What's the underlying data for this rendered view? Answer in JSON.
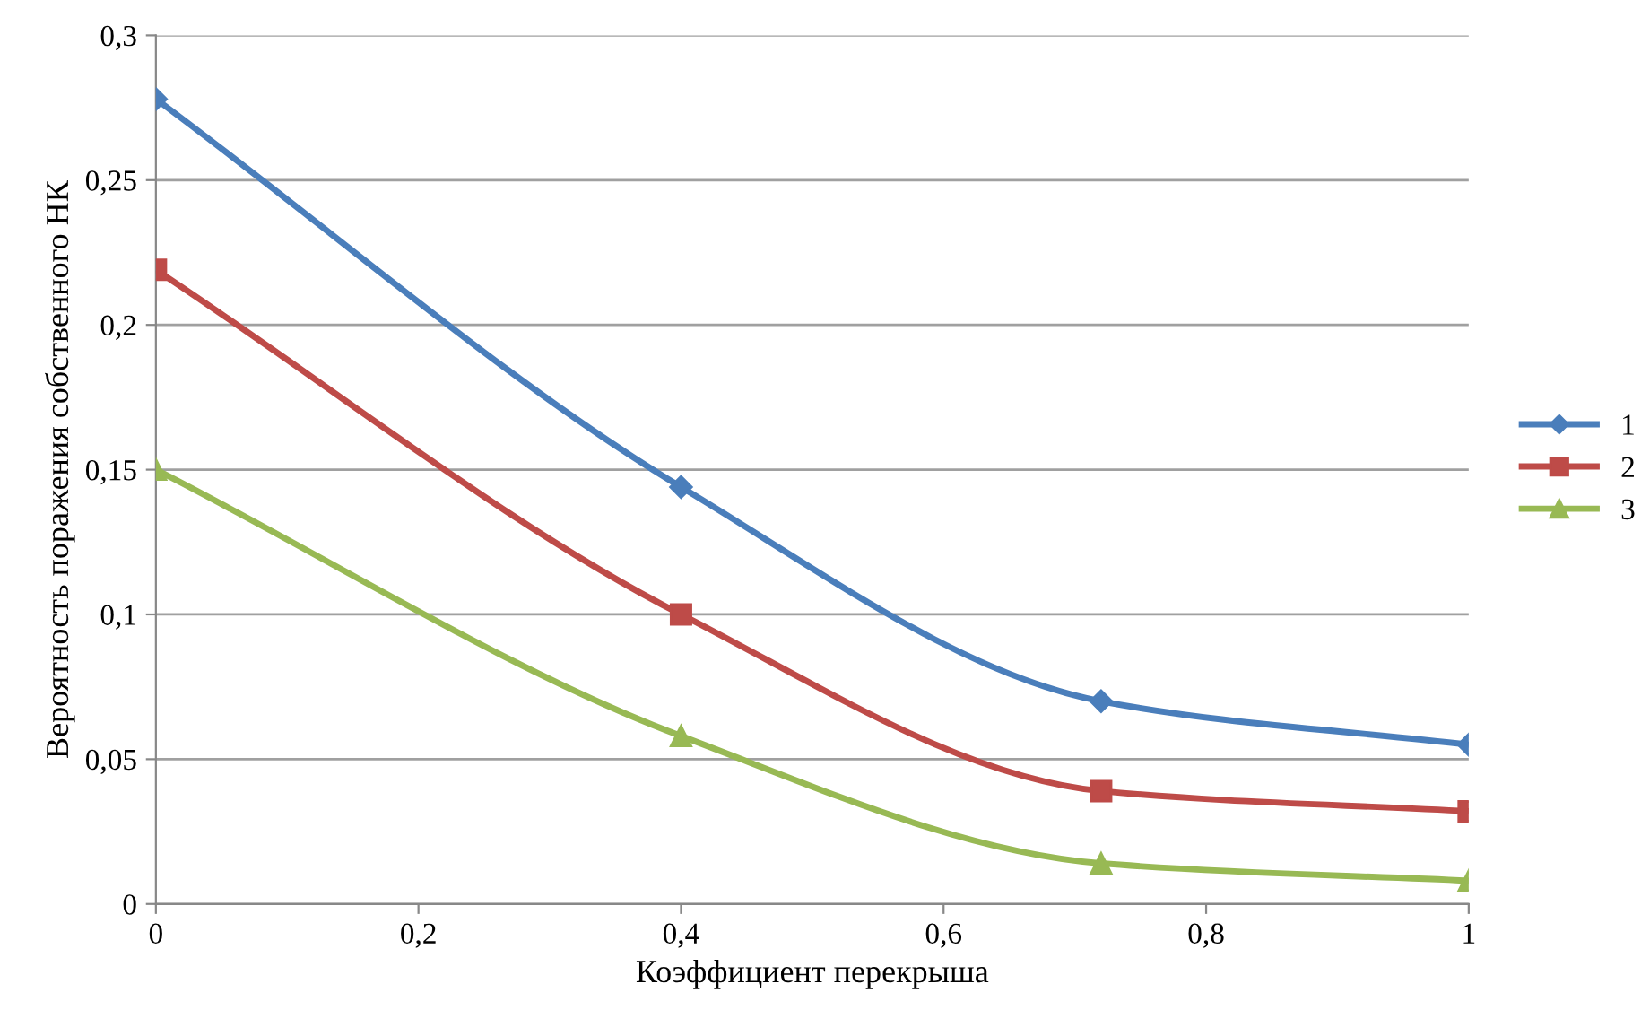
{
  "chart_data": {
    "type": "line",
    "xlabel": "Коэффициент перекрыша",
    "ylabel": "Вероятность поражения собственного НК",
    "x": [
      0,
      0.4,
      0.72,
      1
    ],
    "series": [
      {
        "name": "1",
        "color": "#4a7ebb",
        "marker": "diamond",
        "values": [
          0.278,
          0.144,
          0.07,
          0.055
        ]
      },
      {
        "name": "2",
        "color": "#be4b48",
        "marker": "square",
        "values": [
          0.219,
          0.1,
          0.039,
          0.032
        ]
      },
      {
        "name": "3",
        "color": "#98b954",
        "marker": "triangle",
        "values": [
          0.15,
          0.058,
          0.014,
          0.008
        ]
      }
    ],
    "xlim": [
      0,
      1
    ],
    "xticks": [
      {
        "value": 0,
        "label": "0"
      },
      {
        "value": 0.2,
        "label": "0,2"
      },
      {
        "value": 0.4,
        "label": "0,4"
      },
      {
        "value": 0.6,
        "label": "0,6"
      },
      {
        "value": 0.8,
        "label": "0,8"
      },
      {
        "value": 1,
        "label": "1"
      }
    ],
    "ylim": [
      0,
      0.3
    ],
    "yticks": [
      {
        "value": 0,
        "label": "0"
      },
      {
        "value": 0.05,
        "label": "0,05"
      },
      {
        "value": 0.1,
        "label": "0,1"
      },
      {
        "value": 0.15,
        "label": "0,15"
      },
      {
        "value": 0.2,
        "label": "0,2"
      },
      {
        "value": 0.25,
        "label": "0,25"
      },
      {
        "value": 0.3,
        "label": "0,3"
      }
    ],
    "grid": "y",
    "legend": "right",
    "line_style": "solid"
  }
}
